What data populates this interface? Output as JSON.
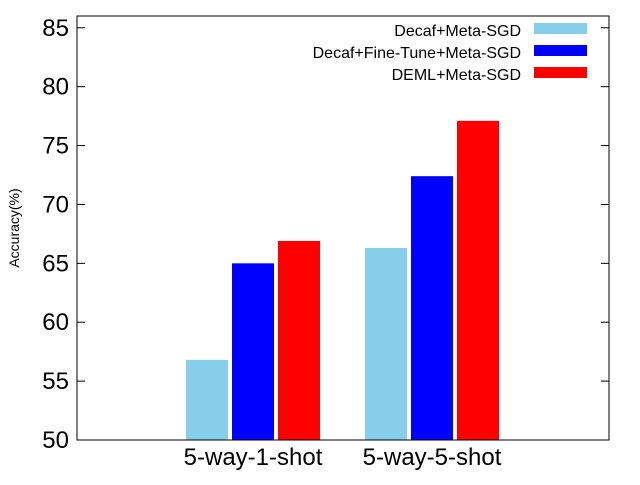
{
  "chart_data": {
    "type": "bar",
    "title": "",
    "xlabel": "",
    "ylabel": "Accuracy(%)",
    "ylim": [
      50,
      86
    ],
    "yticks": [
      50,
      55,
      60,
      65,
      70,
      75,
      80,
      85
    ],
    "categories": [
      "5-way-1-shot",
      "5-way-5-shot"
    ],
    "series": [
      {
        "name": "Decaf+Meta-SGD",
        "color": "#87ceeb",
        "values": [
          56.8,
          66.3
        ]
      },
      {
        "name": "Decaf+Fine-Tune+Meta-SGD",
        "color": "#0000ff",
        "values": [
          65.0,
          72.4
        ]
      },
      {
        "name": "DEML+Meta-SGD",
        "color": "#ff0000",
        "values": [
          66.9,
          77.1
        ]
      }
    ],
    "grid": false,
    "legend_position": "top-right"
  }
}
